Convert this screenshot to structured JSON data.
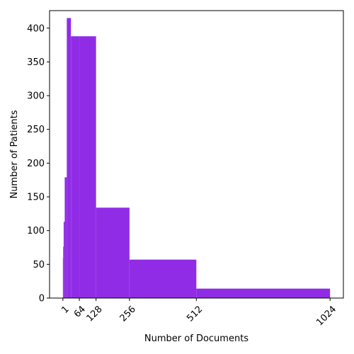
{
  "chart_data": {
    "type": "bar",
    "title": "",
    "xlabel": "Number of Documents",
    "ylabel": "Number of Patients",
    "xlim": [
      -50,
      1075
    ],
    "ylim": [
      0,
      426
    ],
    "xticks": [
      1,
      64,
      128,
      256,
      512,
      1024
    ],
    "xtick_labels": [
      "1",
      "64",
      "128",
      "256",
      "512",
      "1024"
    ],
    "yticks": [
      0,
      50,
      100,
      150,
      200,
      250,
      300,
      350,
      400
    ],
    "ytick_labels": [
      "0",
      "50",
      "100",
      "150",
      "200",
      "250",
      "300",
      "350",
      "400"
    ],
    "grid": false,
    "legend": "none",
    "bar_color": "#912ce6",
    "bins": [
      {
        "x0": 1,
        "x1": 2,
        "value": 59
      },
      {
        "x0": 2,
        "x1": 4,
        "value": 76
      },
      {
        "x0": 4,
        "x1": 8,
        "value": 113
      },
      {
        "x0": 8,
        "x1": 16,
        "value": 179
      },
      {
        "x0": 16,
        "x1": 32,
        "value": 415
      },
      {
        "x0": 32,
        "x1": 64,
        "value": 388
      },
      {
        "x0": 64,
        "x1": 128,
        "value": 388
      },
      {
        "x0": 128,
        "x1": 256,
        "value": 134
      },
      {
        "x0": 256,
        "x1": 512,
        "value": 57
      },
      {
        "x0": 512,
        "x1": 1024,
        "value": 14
      }
    ]
  }
}
